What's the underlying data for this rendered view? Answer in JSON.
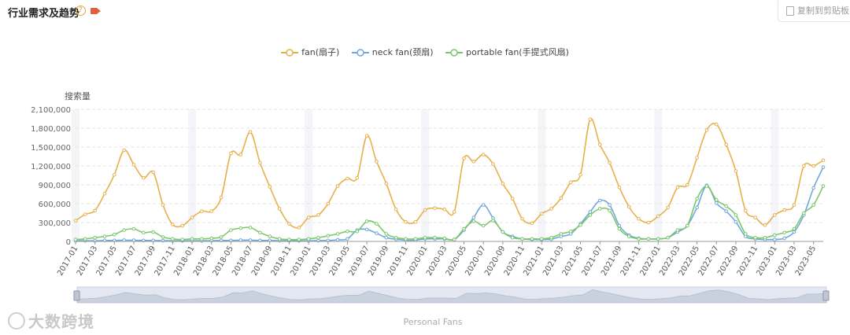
{
  "header": {
    "title": "行业需求及趋势",
    "help_icon": "?",
    "video_icon": "video-camera-icon",
    "copy_label": "复制到剪贴板",
    "copy_icon": "copy-icon"
  },
  "footer_text": "Personal Fans",
  "watermark": "大数跨境",
  "colors": {
    "fan": "#e8b04c",
    "neck": "#6fa8dc",
    "portable": "#7cc86a",
    "grid": "#e5e5e5",
    "band": "#f3f5f9"
  },
  "chart_data": {
    "type": "line",
    "title": "",
    "xlabel": "",
    "ylabel": "搜索量",
    "ylim": [
      0,
      2100000
    ],
    "yticks": [
      "2,100,000",
      "1,800,000",
      "1,500,000",
      "1,200,000",
      "900,000",
      "600,000",
      "300,000",
      "0"
    ],
    "x": [
      "2017-01",
      "2017-02",
      "2017-03",
      "2017-04",
      "2017-05",
      "2017-06",
      "2017-07",
      "2017-08",
      "2017-09",
      "2017-10",
      "2017-11",
      "2017-12",
      "2018-01",
      "2018-02",
      "2018-03",
      "2018-04",
      "2018-05",
      "2018-06",
      "2018-07",
      "2018-08",
      "2018-09",
      "2018-10",
      "2018-11",
      "2018-12",
      "2019-01",
      "2019-02",
      "2019-03",
      "2019-04",
      "2019-05",
      "2019-06",
      "2019-07",
      "2019-08",
      "2019-09",
      "2019-10",
      "2019-11",
      "2019-12",
      "2020-01",
      "2020-02",
      "2020-03",
      "2020-04",
      "2020-05",
      "2020-06",
      "2020-07",
      "2020-08",
      "2020-09",
      "2020-10",
      "2020-11",
      "2020-12",
      "2021-01",
      "2021-02",
      "2021-03",
      "2021-04",
      "2021-05",
      "2021-06",
      "2021-07",
      "2021-08",
      "2021-09",
      "2021-10",
      "2021-11",
      "2021-12",
      "2022-01",
      "2022-02",
      "2022-03",
      "2022-04",
      "2022-05",
      "2022-06",
      "2022-07",
      "2022-08",
      "2022-09",
      "2022-10",
      "2022-11",
      "2022-12",
      "2023-01",
      "2023-02",
      "2023-03",
      "2023-04",
      "2023-05",
      "2023-06"
    ],
    "xtick_labels": [
      "2017-01",
      "2017-03",
      "2017-05",
      "2017-07",
      "2017-09",
      "2017-11",
      "2018-01",
      "2018-03",
      "2018-05",
      "2018-07",
      "2018-09",
      "2018-11",
      "2019-01",
      "2019-03",
      "2019-05",
      "2019-07",
      "2019-09",
      "2019-11",
      "2020-01",
      "2020-03",
      "2020-05",
      "2020-07",
      "2020-09",
      "2020-11",
      "2021-01",
      "2021-03",
      "2021-05",
      "2021-07",
      "2021-09",
      "2021-11",
      "2022-01",
      "2022-03",
      "2022-05",
      "2022-07",
      "2022-09",
      "2022-11",
      "2023-01",
      "2023-03",
      "2023-05"
    ],
    "series": [
      {
        "name": "fan(扇子)",
        "color": "#e8b04c",
        "values": [
          330000,
          430000,
          490000,
          760000,
          1060000,
          1450000,
          1220000,
          1010000,
          1100000,
          580000,
          270000,
          250000,
          380000,
          480000,
          480000,
          700000,
          1400000,
          1380000,
          1740000,
          1250000,
          870000,
          520000,
          280000,
          220000,
          380000,
          420000,
          600000,
          880000,
          1000000,
          1010000,
          1680000,
          1270000,
          920000,
          510000,
          310000,
          310000,
          500000,
          530000,
          510000,
          470000,
          1320000,
          1270000,
          1380000,
          1230000,
          920000,
          680000,
          360000,
          290000,
          440000,
          520000,
          690000,
          940000,
          1060000,
          1940000,
          1540000,
          1250000,
          860000,
          550000,
          360000,
          300000,
          400000,
          540000,
          860000,
          900000,
          1330000,
          1770000,
          1860000,
          1540000,
          1120000,
          490000,
          380000,
          260000,
          420000,
          500000,
          580000,
          1200000,
          1200000,
          1290000
        ]
      },
      {
        "name": "neck fan(颈扇)",
        "color": "#6fa8dc",
        "values": [
          10000,
          10000,
          10000,
          15000,
          15000,
          20000,
          18000,
          15000,
          15000,
          12000,
          10000,
          10000,
          10000,
          10000,
          12000,
          15000,
          15000,
          20000,
          20000,
          15000,
          15000,
          12000,
          10000,
          10000,
          10000,
          12000,
          15000,
          25000,
          40000,
          180000,
          190000,
          130000,
          60000,
          35000,
          20000,
          20000,
          40000,
          40000,
          40000,
          30000,
          180000,
          380000,
          580000,
          370000,
          150000,
          80000,
          40000,
          30000,
          30000,
          35000,
          80000,
          120000,
          280000,
          470000,
          650000,
          580000,
          250000,
          100000,
          50000,
          40000,
          40000,
          60000,
          150000,
          250000,
          540000,
          890000,
          610000,
          480000,
          310000,
          80000,
          40000,
          30000,
          30000,
          50000,
          150000,
          420000,
          850000,
          1180000
        ]
      },
      {
        "name": "portable fan(手提式风扇)",
        "color": "#7cc86a",
        "values": [
          30000,
          40000,
          60000,
          80000,
          110000,
          180000,
          200000,
          140000,
          150000,
          70000,
          40000,
          30000,
          40000,
          40000,
          50000,
          70000,
          180000,
          210000,
          220000,
          140000,
          80000,
          40000,
          30000,
          30000,
          40000,
          60000,
          90000,
          120000,
          160000,
          160000,
          320000,
          280000,
          120000,
          60000,
          40000,
          40000,
          60000,
          60000,
          50000,
          30000,
          200000,
          320000,
          250000,
          330000,
          150000,
          60000,
          40000,
          40000,
          40000,
          60000,
          120000,
          160000,
          260000,
          420000,
          520000,
          490000,
          200000,
          80000,
          40000,
          40000,
          40000,
          60000,
          180000,
          250000,
          680000,
          880000,
          660000,
          560000,
          420000,
          120000,
          60000,
          60000,
          100000,
          140000,
          200000,
          450000,
          580000,
          880000
        ]
      }
    ]
  }
}
